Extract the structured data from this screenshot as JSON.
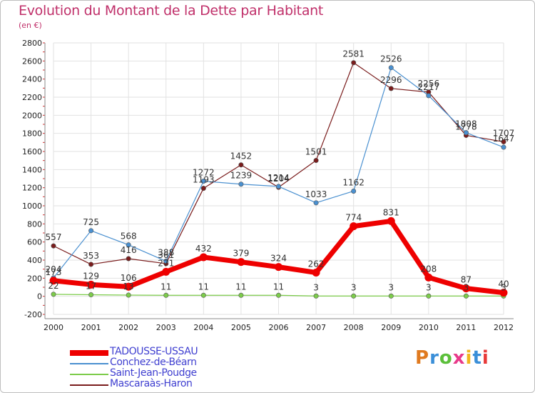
{
  "title": "Evolution du Montant de la Dette par Habitant",
  "unit": "(en €)",
  "brand": "Proxiti",
  "brand_colors": [
    "#e07a1f",
    "#3a8fd8",
    "#5bbf3a",
    "#e83a8a",
    "#f2b61d",
    "#3a8fd8",
    "#e83a3a"
  ],
  "chart_data": {
    "type": "line",
    "x": [
      "2000",
      "2001",
      "2002",
      "2003",
      "2004",
      "2005",
      "2006",
      "2007",
      "2008",
      "2009",
      "2010",
      "2011",
      "2012"
    ],
    "ylim": [
      -200,
      2800
    ],
    "yticks": [
      "-200",
      "0",
      "200",
      "400",
      "600",
      "800",
      "1000",
      "1200",
      "1400",
      "1600",
      "1800",
      "2000",
      "2200",
      "2400",
      "2600",
      "2800"
    ],
    "grid": true,
    "legend_position": "bottom-left",
    "series": [
      {
        "name": "TADOUSSE-USSAU",
        "color": "#ee0000",
        "values": [
          173,
          129,
          106,
          271,
          432,
          379,
          324,
          262,
          774,
          831,
          208,
          87,
          40
        ],
        "labels": [
          "173",
          "129",
          "106",
          "271",
          "432",
          "379",
          "324",
          "262",
          "774",
          "831",
          "208",
          "87",
          "40"
        ]
      },
      {
        "name": "Conchez-de-Béarn",
        "color": "#4a90d0",
        "values": [
          204,
          725,
          568,
          388,
          1272,
          1239,
          1214,
          1033,
          1162,
          2526,
          2217,
          1808,
          1647
        ],
        "labels": [
          "204",
          "725",
          "568",
          "388",
          "1272",
          "1239",
          "1214",
          "1033",
          "1162",
          "2526",
          "2217",
          "1808",
          "1647"
        ]
      },
      {
        "name": "Saint-Jean-Poudge",
        "color": "#7ccc4a",
        "values": [
          22,
          17,
          13,
          11,
          11,
          11,
          11,
          3,
          3,
          3,
          3,
          3,
          3
        ],
        "labels": [
          "22",
          "17",
          "13",
          "11",
          "11",
          "11",
          "11",
          "3",
          "3",
          "3",
          "3",
          "3",
          "3"
        ]
      },
      {
        "name": "Mascaraàs-Haron",
        "color": "#7a1c1c",
        "values": [
          557,
          353,
          416,
          361,
          1193,
          1452,
          1204,
          1501,
          2581,
          2296,
          2256,
          1778,
          1707
        ],
        "labels": [
          "557",
          "353",
          "416",
          "361",
          "1193",
          "1452",
          "1204",
          "1501",
          "2581",
          "2296",
          "2256",
          "1778",
          "1707"
        ]
      }
    ]
  }
}
